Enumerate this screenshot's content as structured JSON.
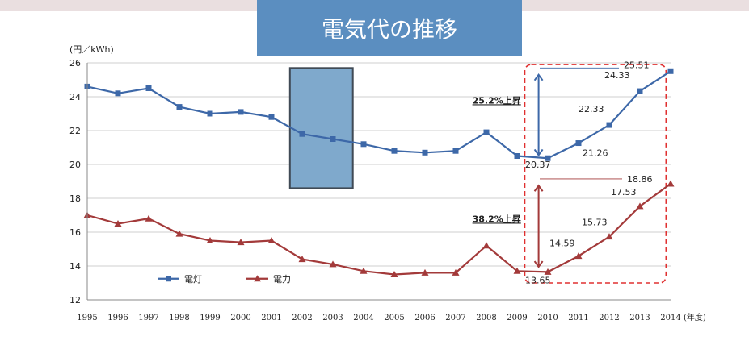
{
  "title": "電気代の推移",
  "colors": {
    "title_bg": "#5b8ec0",
    "series_lighting": "#3d68a8",
    "series_power": "#a33a3a",
    "highlight_box": "#7fa9cc",
    "dashed_box": "#e03030",
    "annotation_blue": "#2a62b0",
    "annotation_red": "#d02a2a"
  },
  "chart_data": {
    "type": "line",
    "y_unit_label": "(円／kWh)",
    "x_unit_label": "(年度)",
    "ylim": [
      12,
      26
    ],
    "yticks": [
      "12",
      "14",
      "16",
      "18",
      "20",
      "22",
      "24",
      "26"
    ],
    "categories": [
      "1995",
      "1996",
      "1997",
      "1998",
      "1999",
      "2000",
      "2001",
      "2002",
      "2003",
      "2004",
      "2005",
      "2006",
      "2007",
      "2008",
      "2009",
      "2010",
      "2011",
      "2012",
      "2013",
      "2014"
    ],
    "series": [
      {
        "name": "電灯",
        "marker": "square",
        "values": [
          24.6,
          24.2,
          24.5,
          23.4,
          23.0,
          23.1,
          22.8,
          21.8,
          21.5,
          21.2,
          20.8,
          20.7,
          20.8,
          21.9,
          20.5,
          20.37,
          21.26,
          22.33,
          24.33,
          25.51
        ]
      },
      {
        "name": "電力",
        "marker": "triangle",
        "values": [
          17.0,
          16.5,
          16.8,
          15.9,
          15.5,
          15.4,
          15.5,
          14.4,
          14.1,
          13.7,
          13.5,
          13.6,
          13.6,
          15.2,
          13.7,
          13.65,
          14.59,
          15.73,
          17.53,
          18.86
        ]
      }
    ],
    "data_labels": {
      "lighting": [
        {
          "index": 15,
          "text": "20.37"
        },
        {
          "index": 16,
          "text": "21.26"
        },
        {
          "index": 17,
          "text": "22.33"
        },
        {
          "index": 18,
          "text": "24.33"
        },
        {
          "index": 19,
          "text": "25.51"
        }
      ],
      "power": [
        {
          "index": 15,
          "text": "13.65"
        },
        {
          "index": 16,
          "text": "14.59"
        },
        {
          "index": 17,
          "text": "15.73"
        },
        {
          "index": 18,
          "text": "17.53"
        },
        {
          "index": 19,
          "text": "18.86"
        }
      ]
    },
    "annotations": {
      "lighting_rise": "25.2%上昇",
      "power_rise": "38.2%上昇"
    },
    "legend_placement": "bottom-left",
    "grid": true
  }
}
